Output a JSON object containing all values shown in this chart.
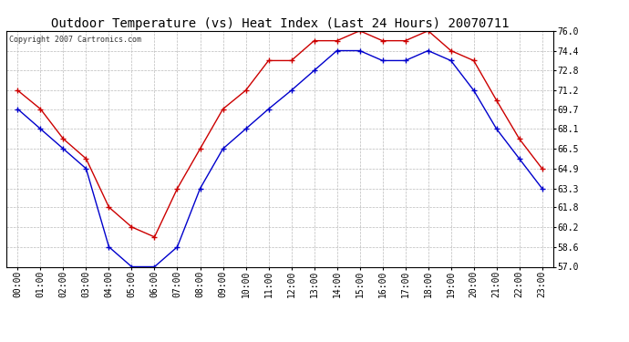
{
  "title": "Outdoor Temperature (vs) Heat Index (Last 24 Hours) 20070711",
  "copyright": "Copyright 2007 Cartronics.com",
  "hours": [
    "00:00",
    "01:00",
    "02:00",
    "03:00",
    "04:00",
    "05:00",
    "06:00",
    "07:00",
    "08:00",
    "09:00",
    "10:00",
    "11:00",
    "12:00",
    "13:00",
    "14:00",
    "15:00",
    "16:00",
    "17:00",
    "18:00",
    "19:00",
    "20:00",
    "21:00",
    "22:00",
    "23:00"
  ],
  "temp_blue": [
    69.7,
    68.1,
    66.5,
    64.9,
    58.6,
    57.0,
    57.0,
    58.6,
    63.3,
    66.5,
    68.1,
    69.7,
    71.2,
    72.8,
    74.4,
    74.4,
    73.6,
    73.6,
    74.4,
    73.6,
    71.2,
    68.1,
    65.7,
    63.3
  ],
  "heat_red": [
    71.2,
    69.7,
    67.3,
    65.7,
    61.8,
    60.2,
    59.4,
    63.3,
    66.5,
    69.7,
    71.2,
    73.6,
    73.6,
    75.2,
    75.2,
    76.0,
    75.2,
    75.2,
    76.0,
    74.4,
    73.6,
    70.4,
    67.3,
    64.9
  ],
  "ylim_min": 57.0,
  "ylim_max": 76.0,
  "yticks": [
    57.0,
    58.6,
    60.2,
    61.8,
    63.3,
    64.9,
    66.5,
    68.1,
    69.7,
    71.2,
    72.8,
    74.4,
    76.0
  ],
  "bg_color": "#ffffff",
  "plot_bg": "#ffffff",
  "blue_color": "#0000cc",
  "red_color": "#cc0000",
  "title_fontsize": 10,
  "tick_fontsize": 7,
  "copyright_fontsize": 6,
  "grid_color": "#bbbbbb"
}
